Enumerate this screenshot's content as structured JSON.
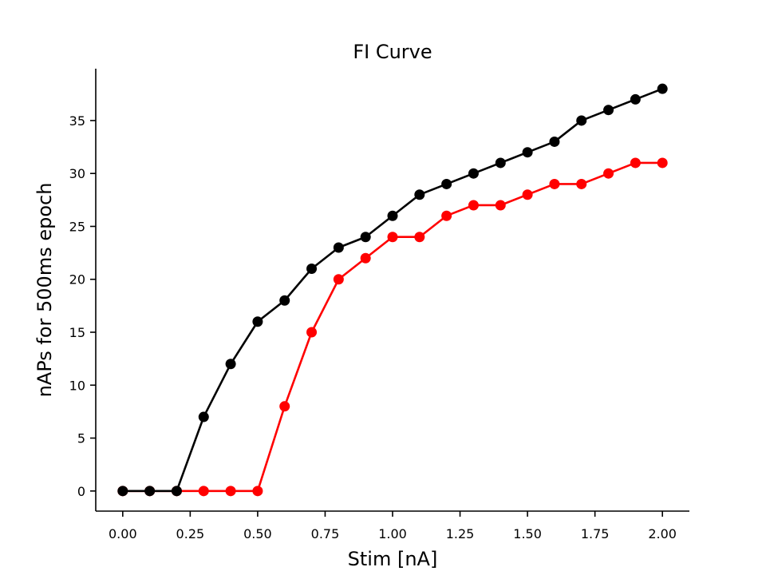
{
  "chart_data": {
    "type": "line",
    "title": "FI Curve",
    "xlabel": "Stim [nA]",
    "ylabel": "nAPs for 500ms epoch",
    "xlim": [
      -0.1,
      2.1
    ],
    "ylim": [
      -1.9,
      39.9
    ],
    "grid": false,
    "legend": "none",
    "xticks": [
      0.0,
      0.25,
      0.5,
      0.75,
      1.0,
      1.25,
      1.5,
      1.75,
      2.0
    ],
    "xtick_labels": [
      "0.00",
      "0.25",
      "0.50",
      "0.75",
      "1.00",
      "1.25",
      "1.50",
      "1.75",
      "2.00"
    ],
    "yticks": [
      0,
      5,
      10,
      15,
      20,
      25,
      30,
      35
    ],
    "ytick_labels": [
      "0",
      "5",
      "10",
      "15",
      "20",
      "25",
      "30",
      "35"
    ],
    "x": [
      0.0,
      0.1,
      0.2,
      0.3,
      0.4,
      0.5,
      0.6,
      0.7,
      0.8,
      0.9,
      1.0,
      1.1,
      1.2,
      1.3,
      1.4,
      1.5,
      1.6,
      1.7,
      1.8,
      1.9,
      2.0
    ],
    "series": [
      {
        "color": "#ff0000",
        "values": [
          0,
          0,
          0,
          0,
          0,
          0,
          8,
          15,
          20,
          22,
          24,
          24,
          26,
          27,
          27,
          28,
          29,
          29,
          30,
          31,
          31
        ]
      },
      {
        "color": "#000000",
        "values": [
          0,
          0,
          0,
          7,
          12,
          16,
          18,
          21,
          23,
          24,
          26,
          28,
          29,
          30,
          31,
          32,
          33,
          35,
          36,
          37,
          38
        ]
      }
    ]
  }
}
